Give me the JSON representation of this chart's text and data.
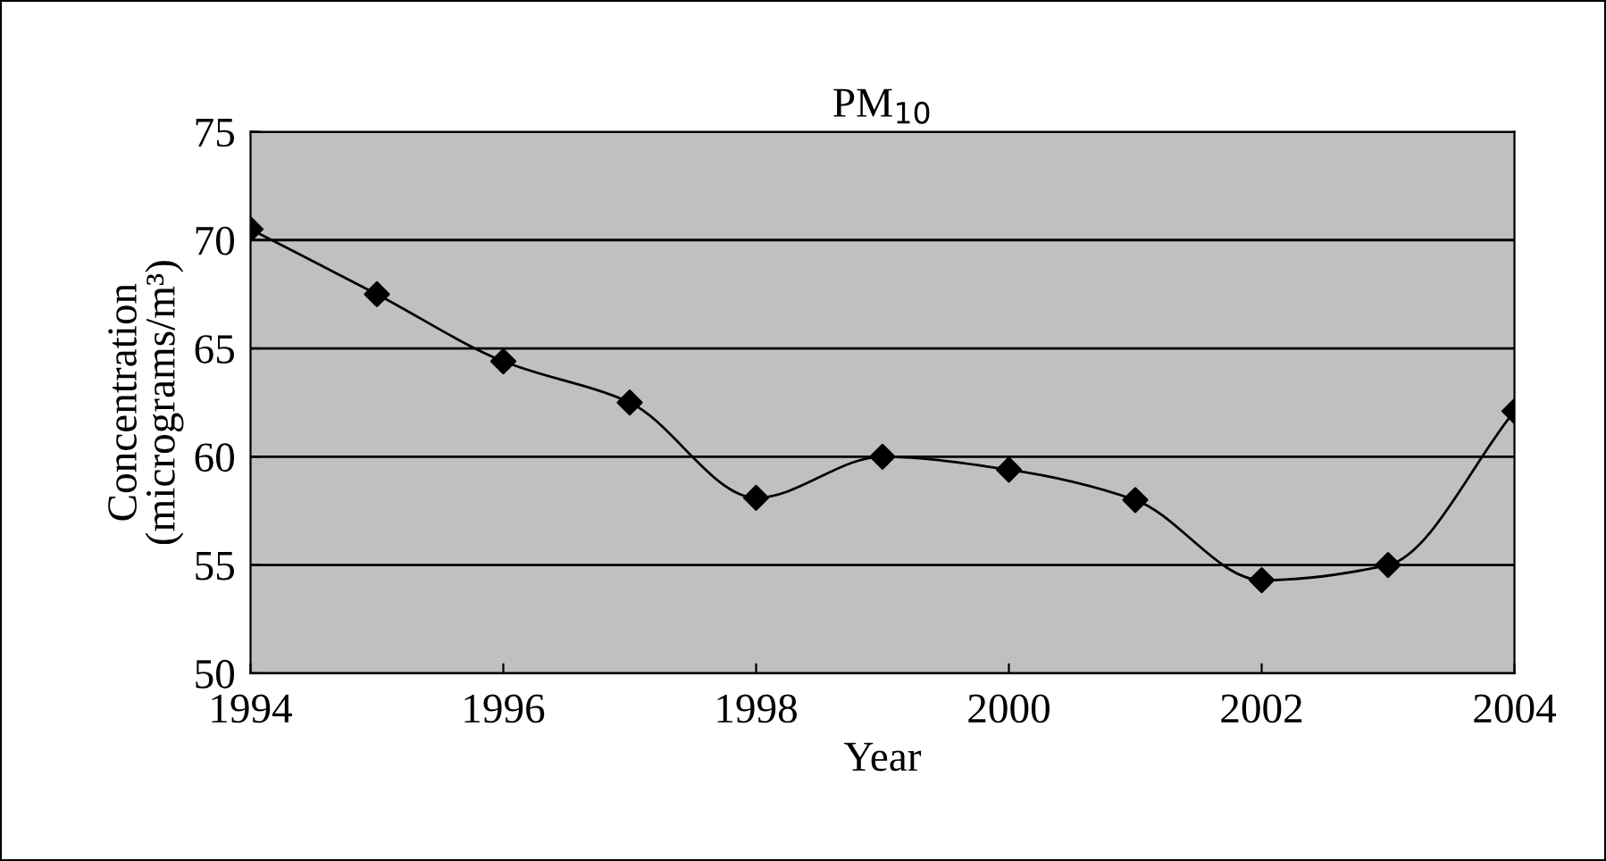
{
  "chart_data": {
    "type": "line",
    "title": "PM$_{10}$",
    "xlabel": "Year",
    "ylabel": "Concentration\n(micrograms/m³)",
    "x": [
      1994,
      1995,
      1996,
      1997,
      1998,
      1999,
      2000,
      2001,
      2002,
      2003,
      2004
    ],
    "series": [
      {
        "color": "#000000",
        "values": [
          70.5,
          67.5,
          64.4,
          62.5,
          58.1,
          60.0,
          59.4,
          58.0,
          54.3,
          55.0,
          62.1
        ]
      }
    ],
    "xlim": [
      1994,
      2004
    ],
    "xticks": [
      1994,
      1996,
      1998,
      2000,
      2002,
      2004
    ],
    "ylim": [
      50,
      75
    ],
    "yticks": [
      50,
      55,
      60,
      65,
      70,
      75
    ],
    "grid": "y",
    "legend": false,
    "marker": "diamond",
    "line_style": "solid"
  }
}
